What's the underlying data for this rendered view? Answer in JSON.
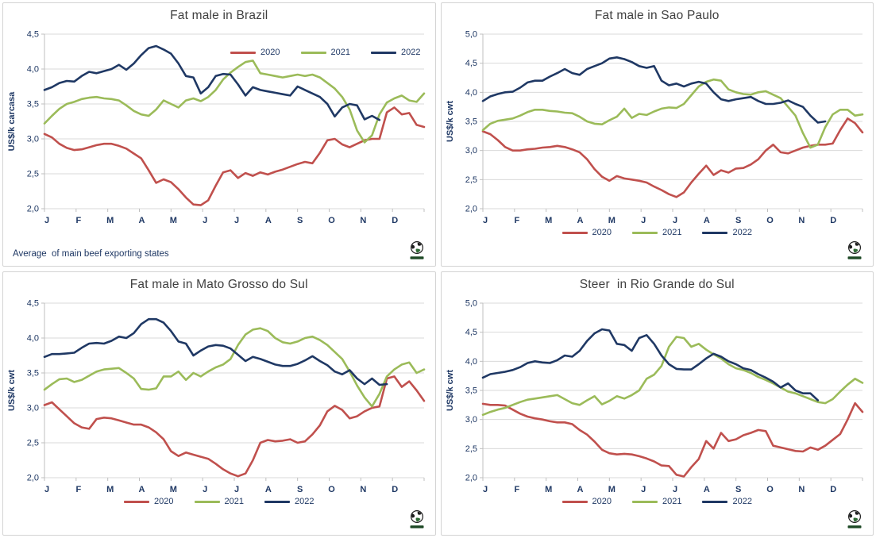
{
  "colors": {
    "red": "#C0504D",
    "green": "#9BBB59",
    "navy": "#1F3864",
    "grid_line": "#D9D9D9",
    "axis_line": "#BFBFBF",
    "tick_text": "#1F3864",
    "title_text": "#404040"
  },
  "months": [
    "J",
    "F",
    "M",
    "A",
    "M",
    "J",
    "J",
    "A",
    "S",
    "O",
    "N",
    "D"
  ],
  "chart_data": [
    {
      "type": "line",
      "title": "Fat male in Brazil",
      "ylabel": "US$/k carcasa",
      "ylim": [
        2.0,
        4.5
      ],
      "ytick_step": 0.5,
      "tick_decimal": "comma",
      "grid": true,
      "legend_position": "top-right",
      "footnote": "Average  of main beef exporting states",
      "x_note": "weekly data Jan-Dec, month initials on axis",
      "series": [
        {
          "name": "2020",
          "color": "red",
          "values": [
            3.07,
            3.02,
            2.93,
            2.87,
            2.84,
            2.85,
            2.88,
            2.91,
            2.93,
            2.93,
            2.9,
            2.86,
            2.79,
            2.72,
            2.55,
            2.37,
            2.42,
            2.38,
            2.28,
            2.16,
            2.06,
            2.05,
            2.12,
            2.33,
            2.52,
            2.55,
            2.44,
            2.51,
            2.47,
            2.52,
            2.49,
            2.53,
            2.56,
            2.6,
            2.64,
            2.67,
            2.65,
            2.8,
            2.98,
            3.0,
            2.92,
            2.88,
            2.93,
            2.98,
            3.0,
            3.0,
            3.38,
            3.45,
            3.35,
            3.37,
            3.2,
            3.17
          ]
        },
        {
          "name": "2021",
          "color": "green",
          "values": [
            3.22,
            3.33,
            3.43,
            3.5,
            3.53,
            3.57,
            3.59,
            3.6,
            3.58,
            3.57,
            3.55,
            3.48,
            3.4,
            3.35,
            3.33,
            3.42,
            3.55,
            3.5,
            3.45,
            3.55,
            3.58,
            3.54,
            3.6,
            3.7,
            3.85,
            3.95,
            4.03,
            4.1,
            4.12,
            3.94,
            3.92,
            3.9,
            3.88,
            3.9,
            3.92,
            3.9,
            3.92,
            3.88,
            3.8,
            3.72,
            3.6,
            3.42,
            3.12,
            2.95,
            3.05,
            3.35,
            3.52,
            3.58,
            3.62,
            3.55,
            3.53,
            3.65
          ]
        },
        {
          "name": "2022",
          "color": "navy",
          "values": [
            3.7,
            3.74,
            3.8,
            3.83,
            3.82,
            3.9,
            3.96,
            3.94,
            3.97,
            4.0,
            4.06,
            3.99,
            4.08,
            4.2,
            4.3,
            4.33,
            4.28,
            4.22,
            4.08,
            3.9,
            3.88,
            3.65,
            3.74,
            3.9,
            3.93,
            3.92,
            3.78,
            3.62,
            3.74,
            3.7,
            3.68,
            3.66,
            3.64,
            3.62,
            3.75,
            3.7,
            3.65,
            3.6,
            3.5,
            3.32,
            3.45,
            3.5,
            3.48,
            3.28,
            3.33,
            3.27
          ]
        }
      ]
    },
    {
      "type": "line",
      "title": "Fat male in Sao Paulo",
      "ylabel": "US$/k cwt",
      "ylim": [
        2.0,
        5.0
      ],
      "ytick_step": 0.5,
      "tick_decimal": "comma",
      "grid": true,
      "legend_position": "bottom",
      "x_note": "weekly data Jan-Dec, month initials on axis",
      "series": [
        {
          "name": "2020",
          "color": "red",
          "values": [
            3.33,
            3.28,
            3.18,
            3.06,
            3.0,
            3.0,
            3.02,
            3.03,
            3.05,
            3.06,
            3.08,
            3.06,
            3.02,
            2.97,
            2.85,
            2.68,
            2.55,
            2.48,
            2.56,
            2.52,
            2.5,
            2.48,
            2.45,
            2.38,
            2.32,
            2.25,
            2.2,
            2.28,
            2.45,
            2.6,
            2.74,
            2.58,
            2.66,
            2.62,
            2.69,
            2.7,
            2.76,
            2.85,
            3.0,
            3.1,
            2.97,
            2.95,
            3.0,
            3.05,
            3.08,
            3.1,
            3.1,
            3.12,
            3.35,
            3.55,
            3.47,
            3.31
          ]
        },
        {
          "name": "2021",
          "color": "green",
          "values": [
            3.35,
            3.46,
            3.51,
            3.53,
            3.55,
            3.6,
            3.66,
            3.7,
            3.7,
            3.68,
            3.67,
            3.65,
            3.64,
            3.58,
            3.5,
            3.46,
            3.45,
            3.52,
            3.58,
            3.72,
            3.56,
            3.63,
            3.61,
            3.67,
            3.72,
            3.74,
            3.73,
            3.8,
            3.95,
            4.1,
            4.18,
            4.22,
            4.2,
            4.05,
            4.0,
            3.97,
            3.96,
            4.0,
            4.02,
            3.96,
            3.9,
            3.75,
            3.6,
            3.3,
            3.05,
            3.1,
            3.4,
            3.62,
            3.7,
            3.7,
            3.6,
            3.62
          ]
        },
        {
          "name": "2022",
          "color": "navy",
          "values": [
            3.85,
            3.93,
            3.97,
            4.0,
            4.01,
            4.08,
            4.17,
            4.2,
            4.2,
            4.27,
            4.33,
            4.4,
            4.33,
            4.3,
            4.4,
            4.45,
            4.5,
            4.58,
            4.6,
            4.57,
            4.52,
            4.45,
            4.42,
            4.45,
            4.2,
            4.12,
            4.15,
            4.1,
            4.15,
            4.18,
            4.15,
            4.0,
            3.88,
            3.85,
            3.88,
            3.9,
            3.92,
            3.85,
            3.8,
            3.8,
            3.82,
            3.86,
            3.8,
            3.75,
            3.6,
            3.48,
            3.5
          ]
        }
      ]
    },
    {
      "type": "line",
      "title": "Fat male in Mato Grosso do Sul",
      "ylabel": "US$/k cwt",
      "ylim": [
        2.0,
        4.5
      ],
      "ytick_step": 0.5,
      "tick_decimal": "comma",
      "grid": true,
      "legend_position": "bottom",
      "x_note": "weekly data Jan-Dec, month initials on axis",
      "series": [
        {
          "name": "2020",
          "color": "red",
          "values": [
            3.04,
            3.08,
            2.98,
            2.88,
            2.78,
            2.72,
            2.7,
            2.84,
            2.86,
            2.85,
            2.82,
            2.79,
            2.76,
            2.76,
            2.72,
            2.65,
            2.55,
            2.38,
            2.31,
            2.36,
            2.33,
            2.3,
            2.27,
            2.2,
            2.12,
            2.06,
            2.02,
            2.06,
            2.25,
            2.5,
            2.54,
            2.52,
            2.53,
            2.55,
            2.5,
            2.52,
            2.62,
            2.75,
            2.95,
            3.03,
            2.97,
            2.85,
            2.88,
            2.95,
            3.0,
            3.02,
            3.42,
            3.45,
            3.3,
            3.38,
            3.25,
            3.1
          ]
        },
        {
          "name": "2021",
          "color": "green",
          "values": [
            3.26,
            3.34,
            3.41,
            3.42,
            3.37,
            3.4,
            3.46,
            3.52,
            3.55,
            3.56,
            3.57,
            3.5,
            3.42,
            3.27,
            3.26,
            3.28,
            3.45,
            3.45,
            3.52,
            3.4,
            3.5,
            3.45,
            3.52,
            3.58,
            3.62,
            3.7,
            3.9,
            4.05,
            4.12,
            4.14,
            4.1,
            4.0,
            3.94,
            3.92,
            3.95,
            4.0,
            4.02,
            3.97,
            3.9,
            3.8,
            3.7,
            3.52,
            3.32,
            3.15,
            3.02,
            3.2,
            3.45,
            3.55,
            3.62,
            3.65,
            3.5,
            3.55
          ]
        },
        {
          "name": "2022",
          "color": "navy",
          "values": [
            3.73,
            3.77,
            3.77,
            3.78,
            3.79,
            3.86,
            3.92,
            3.93,
            3.92,
            3.96,
            4.02,
            4.0,
            4.07,
            4.2,
            4.27,
            4.27,
            4.22,
            4.1,
            3.95,
            3.92,
            3.75,
            3.82,
            3.88,
            3.9,
            3.89,
            3.85,
            3.76,
            3.67,
            3.73,
            3.7,
            3.66,
            3.62,
            3.6,
            3.6,
            3.63,
            3.68,
            3.74,
            3.67,
            3.61,
            3.52,
            3.48,
            3.54,
            3.42,
            3.34,
            3.42,
            3.33,
            3.34
          ]
        }
      ]
    },
    {
      "type": "line",
      "title": "Steer  in Rio Grande do Sul",
      "ylabel": "US$/k cwt",
      "ylim": [
        2.0,
        5.0
      ],
      "ytick_step": 0.5,
      "tick_decimal": "comma",
      "grid": true,
      "legend_position": "bottom",
      "x_note": "weekly data Jan-Dec, month initials on axis",
      "series": [
        {
          "name": "2020",
          "color": "red",
          "values": [
            3.27,
            3.25,
            3.25,
            3.24,
            3.17,
            3.1,
            3.05,
            3.02,
            3.0,
            2.97,
            2.95,
            2.95,
            2.92,
            2.82,
            2.74,
            2.62,
            2.48,
            2.42,
            2.4,
            2.41,
            2.4,
            2.37,
            2.33,
            2.28,
            2.21,
            2.2,
            2.05,
            2.02,
            2.18,
            2.32,
            2.63,
            2.5,
            2.77,
            2.63,
            2.66,
            2.73,
            2.77,
            2.82,
            2.8,
            2.55,
            2.52,
            2.49,
            2.46,
            2.45,
            2.52,
            2.48,
            2.55,
            2.65,
            2.75,
            3.0,
            3.28,
            3.13
          ]
        },
        {
          "name": "2021",
          "color": "green",
          "values": [
            3.08,
            3.13,
            3.17,
            3.2,
            3.25,
            3.3,
            3.34,
            3.36,
            3.38,
            3.4,
            3.42,
            3.35,
            3.28,
            3.25,
            3.33,
            3.4,
            3.26,
            3.32,
            3.4,
            3.36,
            3.42,
            3.5,
            3.7,
            3.77,
            3.92,
            4.25,
            4.42,
            4.4,
            4.25,
            4.3,
            4.2,
            4.12,
            4.05,
            3.95,
            3.88,
            3.85,
            3.8,
            3.73,
            3.68,
            3.62,
            3.55,
            3.48,
            3.45,
            3.4,
            3.35,
            3.3,
            3.28,
            3.35,
            3.48,
            3.6,
            3.7,
            3.63
          ]
        },
        {
          "name": "2022",
          "color": "navy",
          "values": [
            3.72,
            3.78,
            3.8,
            3.82,
            3.85,
            3.9,
            3.97,
            4.0,
            3.98,
            3.97,
            4.02,
            4.1,
            4.08,
            4.18,
            4.35,
            4.48,
            4.55,
            4.53,
            4.3,
            4.28,
            4.18,
            4.4,
            4.45,
            4.3,
            4.1,
            3.95,
            3.87,
            3.86,
            3.86,
            3.95,
            4.05,
            4.13,
            4.08,
            4.0,
            3.95,
            3.88,
            3.85,
            3.78,
            3.72,
            3.65,
            3.55,
            3.62,
            3.5,
            3.45,
            3.45,
            3.33
          ]
        }
      ]
    }
  ]
}
